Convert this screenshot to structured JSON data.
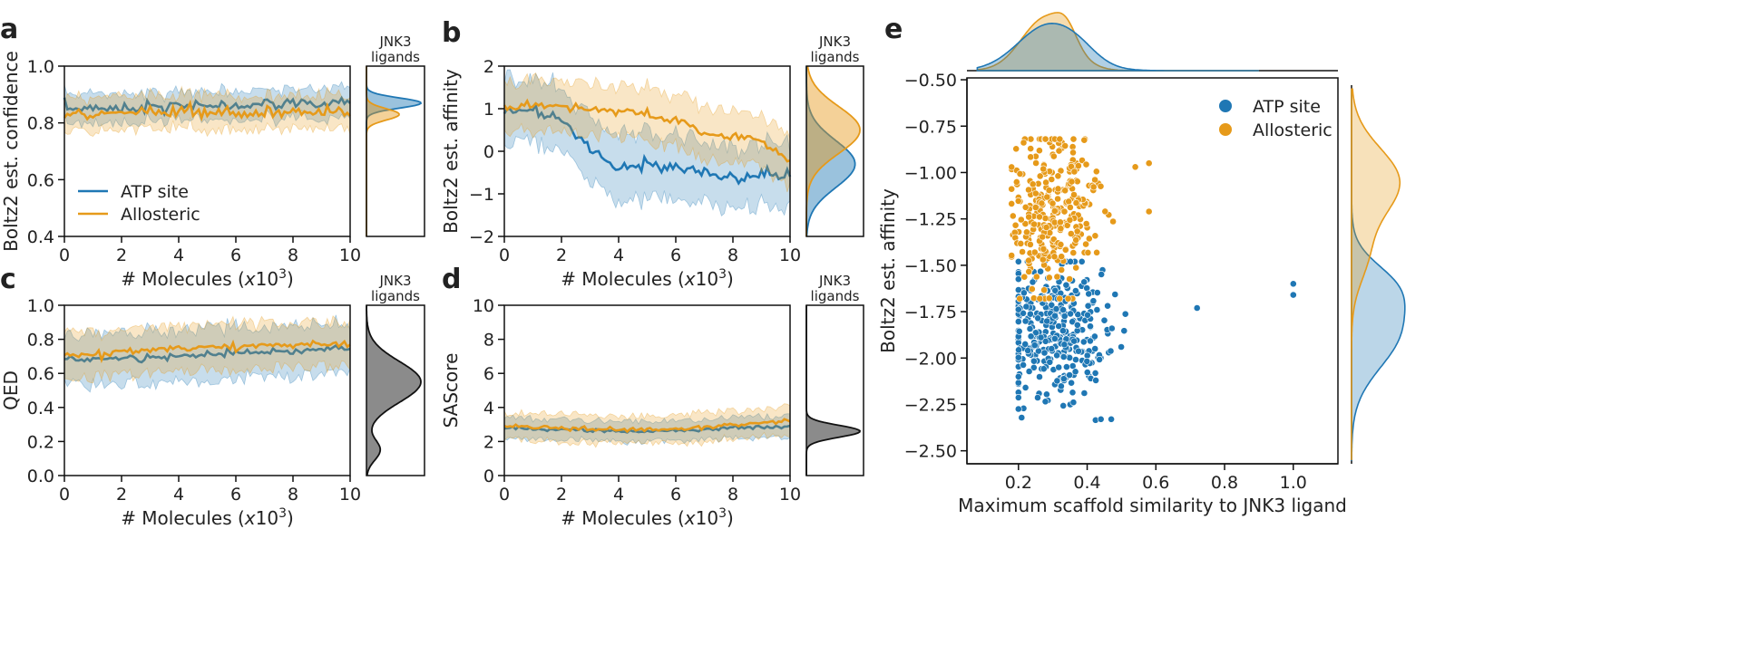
{
  "colors": {
    "atp": "#1f77b4",
    "allo": "#e69a1a",
    "ref": "#777777",
    "axis": "#111111"
  },
  "panels": {
    "a": {
      "letter": "a",
      "ylabel": "Boltz2 est. confidence",
      "xlabel_main": "# Molecules (",
      "xlabel_x": "x",
      "xlabel_tail": "10",
      "xlabel_exp": "3",
      "xlabel_end": ")",
      "side_title_1": "JNK3",
      "side_title_2": "ligands",
      "ylim": [
        0.4,
        1.0
      ],
      "yticks": [
        "0.4",
        "0.6",
        "0.8",
        "1.0"
      ],
      "legend": [
        "ATP site",
        "Allosteric"
      ]
    },
    "b": {
      "letter": "b",
      "ylabel": "Boltz2 est. affinity",
      "xlabel_main": "# Molecules (",
      "xlabel_x": "x",
      "xlabel_tail": "10",
      "xlabel_exp": "3",
      "xlabel_end": ")",
      "side_title_1": "JNK3",
      "side_title_2": "ligands",
      "ylim": [
        -2,
        2
      ],
      "yticks": [
        "−2",
        "−1",
        "0",
        "1",
        "2"
      ]
    },
    "c": {
      "letter": "c",
      "ylabel": "QED",
      "xlabel_main": "# Molecules (",
      "xlabel_x": "x",
      "xlabel_tail": "10",
      "xlabel_exp": "3",
      "xlabel_end": ")",
      "side_title_1": "JNK3",
      "side_title_2": "ligands",
      "ylim": [
        0.0,
        1.0
      ],
      "yticks": [
        "0.0",
        "0.2",
        "0.4",
        "0.6",
        "0.8",
        "1.0"
      ]
    },
    "d": {
      "letter": "d",
      "ylabel": "SAScore",
      "xlabel_main": "# Molecules (",
      "xlabel_x": "x",
      "xlabel_tail": "10",
      "xlabel_exp": "3",
      "xlabel_end": ")",
      "side_title_1": "JNK3",
      "side_title_2": "ligands",
      "ylim": [
        0,
        10
      ],
      "yticks": [
        "0",
        "2",
        "4",
        "6",
        "8",
        "10"
      ]
    },
    "e": {
      "letter": "e",
      "ylabel": "Boltz2 est. affinity",
      "xlabel": "Maximum scaffold similarity to JNK3 ligand",
      "xticks": [
        "0.2",
        "0.4",
        "0.6",
        "0.8",
        "1.0"
      ],
      "yticks": [
        "−0.50",
        "−0.75",
        "−1.00",
        "−1.25",
        "−1.50",
        "−1.75",
        "−2.00",
        "−2.25",
        "−2.50"
      ],
      "legend": [
        "ATP site",
        "Allosteric"
      ]
    }
  },
  "xticks_common": [
    "0",
    "2",
    "4",
    "6",
    "8",
    "10"
  ],
  "chart_data": [
    {
      "id": "a",
      "type": "line",
      "title": "",
      "xlabel": "# Molecules (x10^3)",
      "ylabel": "Boltz2 est. confidence",
      "xlim": [
        0,
        10
      ],
      "ylim": [
        0.4,
        1.0
      ],
      "series": [
        {
          "name": "ATP site",
          "mean_start": 0.85,
          "mean_end": 0.87,
          "band_width": 0.05,
          "noise": 0.01
        },
        {
          "name": "Allosteric",
          "mean_start": 0.83,
          "mean_end": 0.84,
          "band_width": 0.06,
          "noise": 0.012
        }
      ],
      "side_density": {
        "title": "JNK3 ligands",
        "components": [
          {
            "name": "ATP site",
            "center": 0.87,
            "sd": 0.018,
            "height": 1.0
          },
          {
            "name": "Allosteric",
            "center": 0.83,
            "sd": 0.02,
            "height": 0.6
          }
        ]
      }
    },
    {
      "id": "b",
      "type": "line",
      "title": "",
      "xlabel": "# Molecules (x10^3)",
      "ylabel": "Boltz2 est. affinity",
      "xlim": [
        0,
        10
      ],
      "ylim": [
        -2,
        2
      ],
      "series": [
        {
          "name": "ATP site",
          "points": [
            [
              0,
              0.95
            ],
            [
              1,
              0.95
            ],
            [
              2,
              0.75
            ],
            [
              3,
              0.0
            ],
            [
              4,
              -0.4
            ],
            [
              5,
              -0.3
            ],
            [
              6,
              -0.4
            ],
            [
              7,
              -0.5
            ],
            [
              8,
              -0.6
            ],
            [
              9,
              -0.55
            ],
            [
              10,
              -0.6
            ]
          ],
          "band_width": 0.75,
          "noise": 0.06
        },
        {
          "name": "Allosteric",
          "points": [
            [
              0,
              1.0
            ],
            [
              1,
              1.1
            ],
            [
              2,
              1.05
            ],
            [
              3,
              1.0
            ],
            [
              4,
              0.95
            ],
            [
              5,
              0.85
            ],
            [
              6,
              0.7
            ],
            [
              7,
              0.45
            ],
            [
              8,
              0.35
            ],
            [
              9,
              0.25
            ],
            [
              10,
              -0.25
            ]
          ],
          "band_width": 0.6,
          "noise": 0.05
        }
      ],
      "side_density": {
        "title": "JNK3 ligands",
        "components": [
          {
            "name": "ATP site",
            "center": -0.3,
            "sd": 0.55,
            "height": 1.0
          },
          {
            "name": "Allosteric",
            "center": 0.5,
            "sd": 0.55,
            "height": 1.1
          }
        ]
      }
    },
    {
      "id": "c",
      "type": "line",
      "title": "",
      "xlabel": "# Molecules (x10^3)",
      "ylabel": "QED",
      "xlim": [
        0,
        10
      ],
      "ylim": [
        0.0,
        1.0
      ],
      "series": [
        {
          "name": "ATP site",
          "points": [
            [
              0,
              0.68
            ],
            [
              2,
              0.69
            ],
            [
              4,
              0.7
            ],
            [
              6,
              0.72
            ],
            [
              8,
              0.73
            ],
            [
              10,
              0.75
            ]
          ],
          "band_width": 0.15,
          "noise": 0.01
        },
        {
          "name": "Allosteric",
          "points": [
            [
              0,
              0.7
            ],
            [
              2,
              0.73
            ],
            [
              4,
              0.75
            ],
            [
              6,
              0.76
            ],
            [
              8,
              0.77
            ],
            [
              10,
              0.77
            ]
          ],
          "band_width": 0.13,
          "noise": 0.01
        }
      ],
      "side_density": {
        "title": "JNK3 ligands",
        "components": [
          {
            "name": "JNK3 ligands",
            "center": 0.55,
            "sd": 0.12,
            "height": 1.0
          },
          {
            "name": "JNK3 ligands",
            "center": 0.15,
            "sd": 0.06,
            "height": 0.25
          }
        ]
      }
    },
    {
      "id": "d",
      "type": "line",
      "title": "",
      "xlabel": "# Molecules (x10^3)",
      "ylabel": "SAScore",
      "xlim": [
        0,
        10
      ],
      "ylim": [
        0,
        10
      ],
      "series": [
        {
          "name": "ATP site",
          "points": [
            [
              0,
              2.8
            ],
            [
              2,
              2.7
            ],
            [
              4,
              2.6
            ],
            [
              6,
              2.6
            ],
            [
              8,
              2.8
            ],
            [
              10,
              2.9
            ]
          ],
          "band_width": 0.6,
          "noise": 0.06
        },
        {
          "name": "Allosteric",
          "points": [
            [
              0,
              2.9
            ],
            [
              2,
              2.8
            ],
            [
              4,
              2.7
            ],
            [
              6,
              2.7
            ],
            [
              8,
              3.0
            ],
            [
              10,
              3.2
            ]
          ],
          "band_width": 0.8,
          "noise": 0.06
        }
      ],
      "side_density": {
        "title": "JNK3 ligands",
        "components": [
          {
            "name": "JNK3 ligands",
            "center": 2.6,
            "sd": 0.35,
            "height": 1.0
          }
        ]
      }
    },
    {
      "id": "e",
      "type": "scatter",
      "title": "",
      "xlabel": "Maximum scaffold similarity to JNK3 ligand",
      "ylabel": "Boltz2 est. affinity",
      "xlim": [
        0.05,
        1.13
      ],
      "ylim": [
        -2.57,
        -0.49
      ],
      "series": [
        {
          "name": "ATP site",
          "n_points": 340,
          "x_center": 0.3,
          "x_spread": 0.08,
          "y_center": -1.85,
          "y_spread": 0.18,
          "outliers": [
            [
              1.0,
              -1.6
            ],
            [
              1.0,
              -1.66
            ],
            [
              0.72,
              -1.73
            ],
            [
              0.47,
              -2.33
            ],
            [
              0.44,
              -2.33
            ]
          ]
        },
        {
          "name": "Allosteric",
          "n_points": 310,
          "x_center": 0.3,
          "x_spread": 0.06,
          "y_center": -1.2,
          "y_spread": 0.22,
          "outliers": [
            [
              0.58,
              -0.95
            ],
            [
              0.54,
              -0.97
            ],
            [
              0.58,
              -1.21
            ]
          ]
        }
      ],
      "top_density": {
        "components": [
          {
            "name": "ATP site",
            "center": 0.29,
            "sd": 0.09,
            "height": 1.0
          },
          {
            "name": "Allosteric",
            "center": 0.28,
            "sd": 0.07,
            "height": 1.15
          }
        ]
      },
      "right_density": {
        "components": [
          {
            "name": "ATP site",
            "center": -1.85,
            "sd": 0.2,
            "height": 1.0
          },
          {
            "name": "Allosteric",
            "center": -1.05,
            "sd": 0.18,
            "height": 1.0
          }
        ]
      }
    }
  ]
}
